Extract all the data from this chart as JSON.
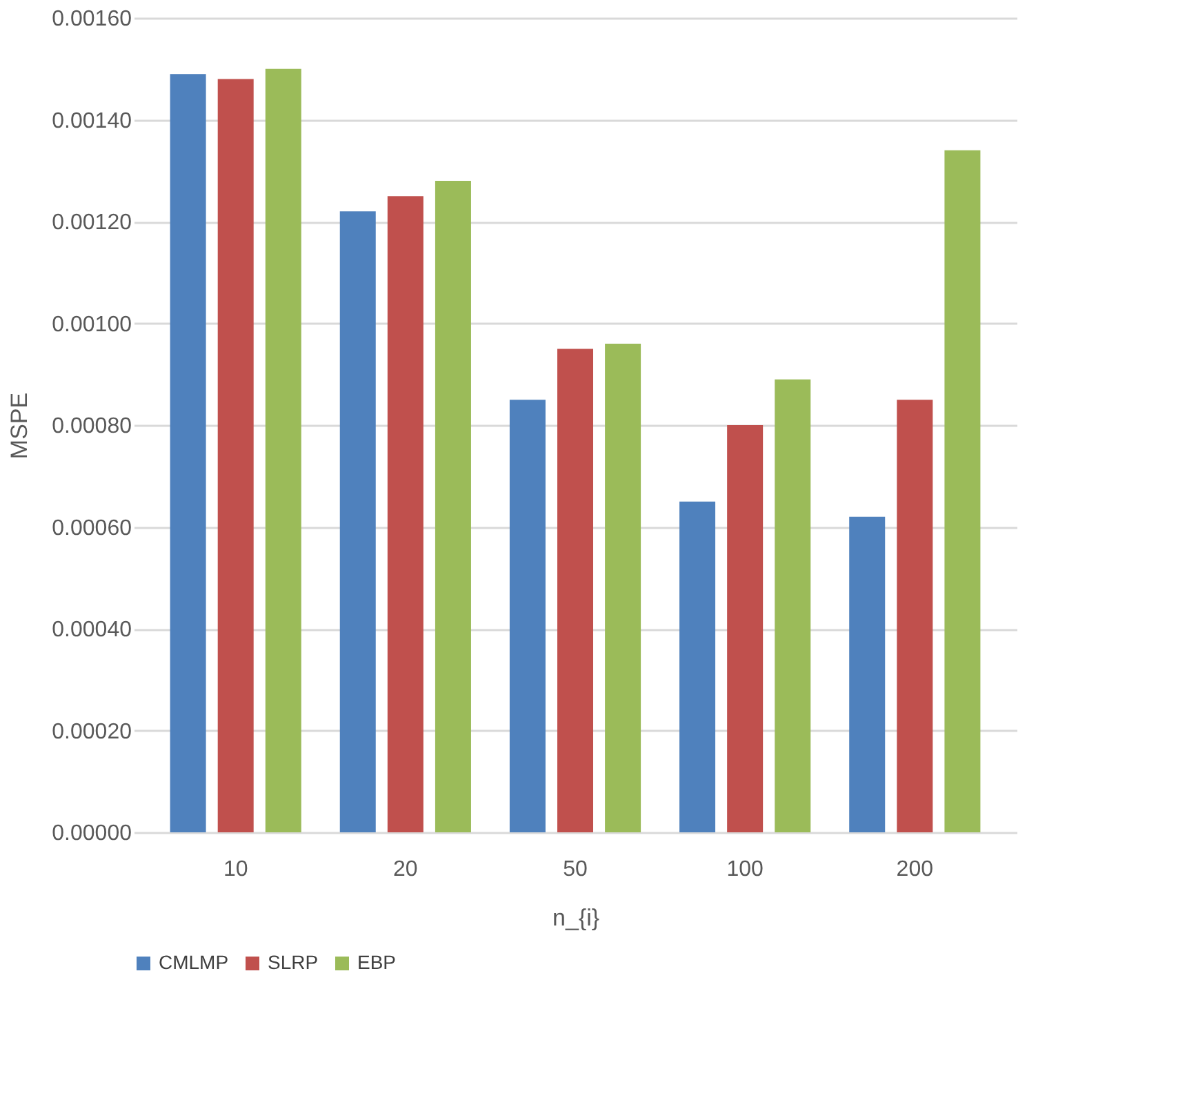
{
  "chart_data": {
    "type": "bar",
    "xlabel": "n_{i}",
    "ylabel": "MSPE",
    "categories": [
      "10",
      "20",
      "50",
      "100",
      "200"
    ],
    "series": [
      {
        "name": "CMLMP",
        "color": "#4f81bd",
        "values": [
          0.00149,
          0.00122,
          0.00085,
          0.00065,
          0.00062
        ]
      },
      {
        "name": "SLRP",
        "color": "#c0504d",
        "values": [
          0.00148,
          0.00125,
          0.00095,
          0.0008,
          0.00085
        ]
      },
      {
        "name": "EBP",
        "color": "#9bbb59",
        "values": [
          0.0015,
          0.00128,
          0.00096,
          0.00089,
          0.00134
        ]
      }
    ],
    "ylim": [
      0,
      0.0016
    ],
    "yticks": [
      {
        "value": 0,
        "label": "0.00000"
      },
      {
        "value": 0.0002,
        "label": "0.00020"
      },
      {
        "value": 0.0004,
        "label": "0.00040"
      },
      {
        "value": 0.0006,
        "label": "0.00060"
      },
      {
        "value": 0.0008,
        "label": "0.00080"
      },
      {
        "value": 0.001,
        "label": "0.00100"
      },
      {
        "value": 0.0012,
        "label": "0.00120"
      },
      {
        "value": 0.0014,
        "label": "0.00140"
      },
      {
        "value": 0.0016,
        "label": "0.00160"
      }
    ],
    "grid": "y",
    "legend": "bottom"
  }
}
